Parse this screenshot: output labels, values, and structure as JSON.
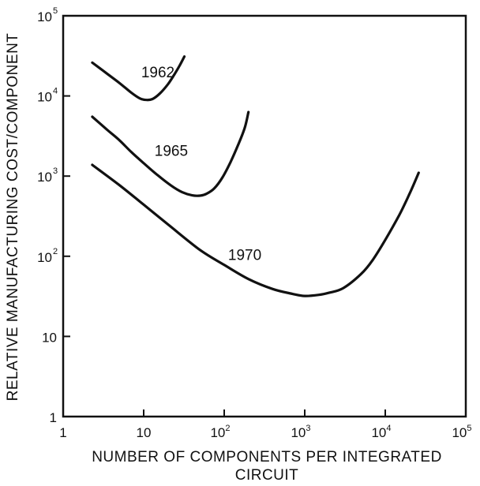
{
  "chart_data": {
    "type": "line",
    "xlabel": [
      "NUMBER OF COMPONENTS PER INTEGRATED",
      "CIRCUIT"
    ],
    "ylabel": "RELATIVE MANUFACTURING COST/COMPONENT",
    "xscale": "log",
    "yscale": "log",
    "xlim": [
      1,
      100000
    ],
    "ylim": [
      1,
      100000
    ],
    "x_ticks": [
      {
        "value": 1,
        "base": "1",
        "exp": ""
      },
      {
        "value": 10,
        "base": "10",
        "exp": ""
      },
      {
        "value": 100,
        "base": "10",
        "exp": "2"
      },
      {
        "value": 1000,
        "base": "10",
        "exp": "3"
      },
      {
        "value": 10000,
        "base": "10",
        "exp": "4"
      },
      {
        "value": 100000,
        "base": "10",
        "exp": "5"
      }
    ],
    "y_ticks": [
      {
        "value": 1,
        "base": "1",
        "exp": ""
      },
      {
        "value": 10,
        "base": "10",
        "exp": ""
      },
      {
        "value": 100,
        "base": "10",
        "exp": "2"
      },
      {
        "value": 1000,
        "base": "10",
        "exp": "3"
      },
      {
        "value": 10000,
        "base": "10",
        "exp": "4"
      },
      {
        "value": 100000,
        "base": "10",
        "exp": "5"
      }
    ],
    "grid": false,
    "legend": "none",
    "series": [
      {
        "name": "1962",
        "label_at": [
          15,
          17000
        ],
        "x": [
          2.3,
          3.5,
          5,
          7,
          9,
          11,
          13,
          16,
          20,
          24,
          28,
          32
        ],
        "y": [
          26000,
          19000,
          14500,
          11000,
          9300,
          8900,
          9200,
          10800,
          14000,
          18500,
          24000,
          31000
        ]
      },
      {
        "name": "1965",
        "label_at": [
          22,
          1800
        ],
        "x": [
          2.3,
          3.5,
          5,
          7,
          10,
          15,
          22,
          30,
          40,
          50,
          60,
          75,
          95,
          120,
          150,
          180,
          200
        ],
        "y": [
          5500,
          3800,
          2800,
          2000,
          1450,
          1020,
          760,
          630,
          575,
          570,
          600,
          700,
          960,
          1500,
          2500,
          4000,
          6300
        ]
      },
      {
        "name": "1970",
        "label_at": [
          180,
          90
        ],
        "x": [
          2.3,
          5,
          10,
          20,
          50,
          100,
          200,
          400,
          700,
          1000,
          1500,
          2000,
          3000,
          5000,
          7000,
          10000,
          15000,
          20000,
          26000
        ],
        "y": [
          1380,
          770,
          440,
          250,
          120,
          78,
          52,
          39,
          34,
          32,
          33,
          35,
          40,
          60,
          90,
          160,
          330,
          600,
          1100
        ]
      }
    ]
  }
}
